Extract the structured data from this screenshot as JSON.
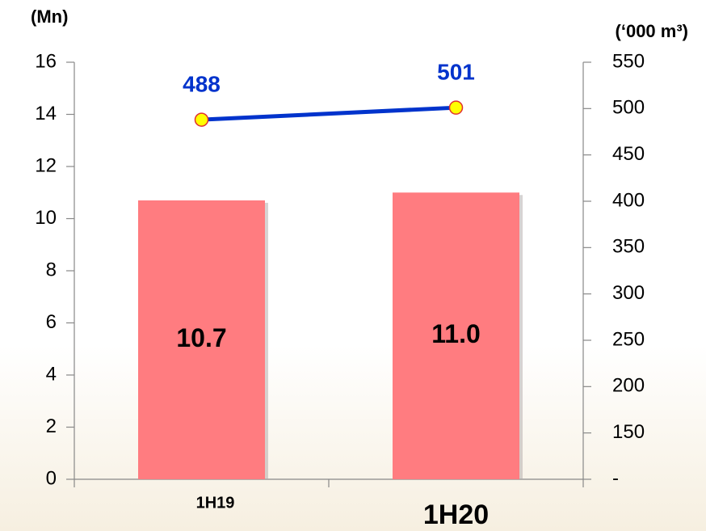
{
  "chart_data": {
    "type": "combo",
    "y_label": "(Mn)",
    "y2_label": "(‘000 m³)",
    "categories": [
      "1H19",
      "1H20"
    ],
    "series": [
      {
        "type": "bar",
        "color": "#ff7c80",
        "values": [
          10.7,
          11.0
        ],
        "value_labels": [
          "10.7",
          "11.0"
        ]
      },
      {
        "type": "line",
        "axis": "y2",
        "color": "#0033cc",
        "marker_color": "#ffff00",
        "values": [
          488,
          501
        ]
      }
    ],
    "ylim": [
      0,
      16
    ],
    "yticks": [
      0,
      2,
      4,
      6,
      8,
      10,
      12,
      14,
      16
    ],
    "y2lim": [
      100,
      550
    ],
    "y2ticks": [
      {
        "value": 100,
        "label": "-"
      },
      150,
      200,
      250,
      300,
      350,
      400,
      450,
      500,
      550
    ]
  }
}
